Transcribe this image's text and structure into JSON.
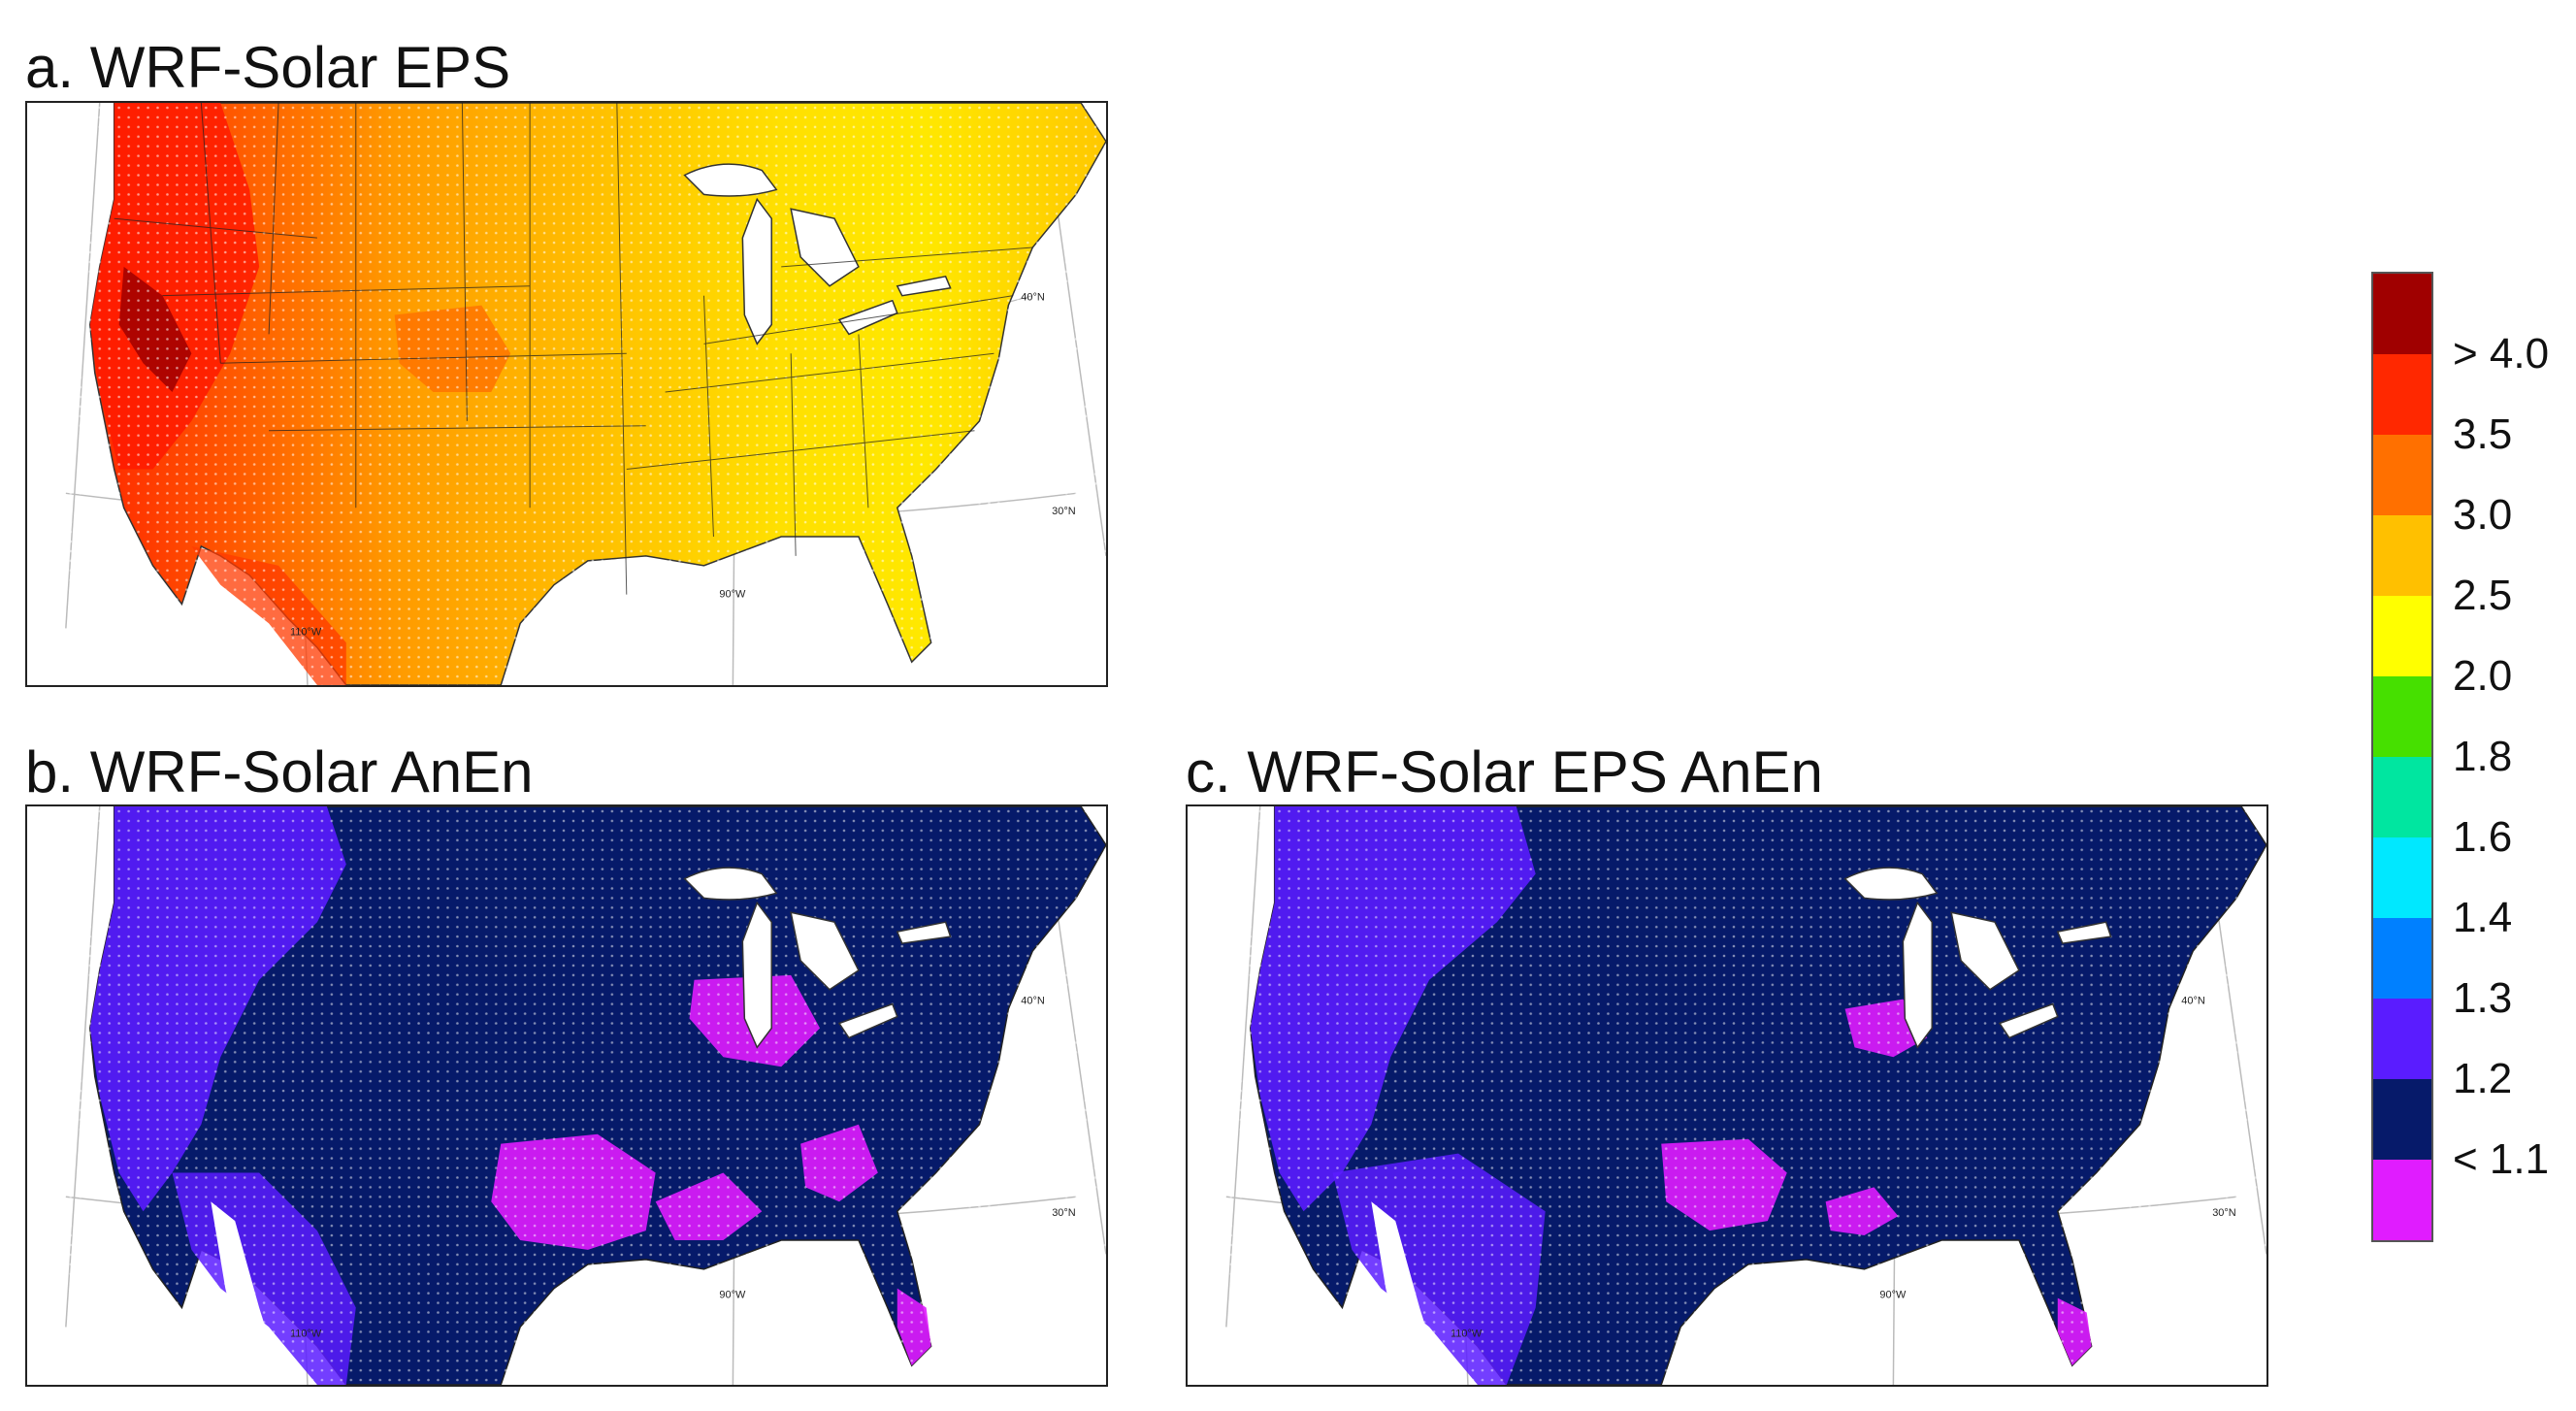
{
  "panels": {
    "a": {
      "title": "a. WRF-Solar EPS"
    },
    "b": {
      "title": "b. WRF-Solar AnEn"
    },
    "c": {
      "title": "c. WRF-Solar EPS AnEn"
    }
  },
  "map_labels": {
    "lat40": "40°N",
    "lat30": "30°N",
    "lon90": "90°W",
    "lon110": "110°W"
  },
  "colorbar": {
    "colors": [
      "#a00000",
      "#ff2800",
      "#ff7000",
      "#ffc000",
      "#ffff00",
      "#46e000",
      "#00e6a0",
      "#00e8ff",
      "#0080ff",
      "#5a1cff",
      "#061a6a",
      "#e01cff"
    ],
    "labels": [
      "> 4.0",
      "3.5",
      "3.0",
      "2.5",
      "2.0",
      "1.8",
      "1.6",
      "1.4",
      "1.3",
      "1.2",
      "< 1.1"
    ]
  }
}
